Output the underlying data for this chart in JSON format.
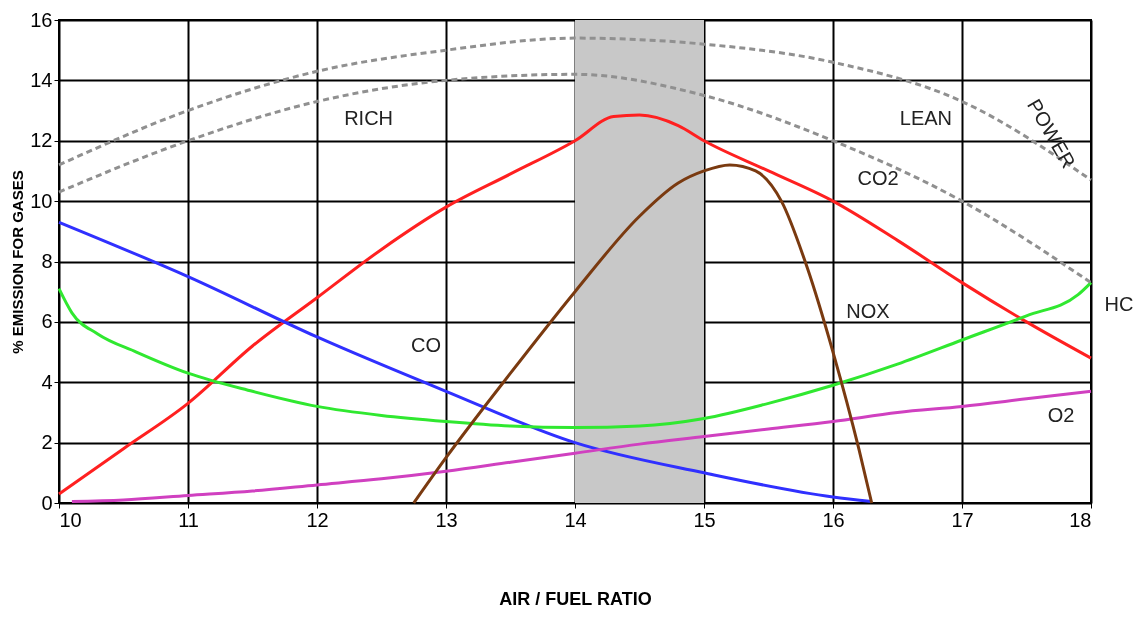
{
  "chart_data": {
    "type": "line",
    "xlabel": "AIR / FUEL RATIO",
    "ylabel": "% EMISSION FOR GASES",
    "xlim": [
      10,
      18
    ],
    "xticks": [
      10,
      11,
      12,
      13,
      14,
      15,
      16,
      17,
      18
    ],
    "ylim": [
      0,
      16
    ],
    "yticks": [
      0,
      2,
      4,
      6,
      8,
      10,
      12,
      14,
      16
    ],
    "grid": true,
    "marker": "none",
    "series": [
      {
        "name": "CO2",
        "color": "#ff2020",
        "x": [
          10,
          10.5,
          11,
          11.5,
          12,
          12.5,
          13,
          13.5,
          14,
          14.3,
          14.5,
          14.8,
          15,
          15.5,
          16,
          16.5,
          17,
          17.5,
          18
        ],
        "values": [
          0.3,
          1.8,
          3.3,
          5.2,
          6.8,
          8.4,
          9.8,
          10.9,
          12.0,
          12.8,
          12.85,
          12.5,
          12.0,
          11.0,
          10.0,
          8.7,
          7.3,
          6.0,
          4.8
        ]
      },
      {
        "name": "CO",
        "color": "#3030ff",
        "x": [
          10,
          11,
          12,
          13,
          14,
          15,
          16,
          16.3
        ],
        "values": [
          9.3,
          7.5,
          5.5,
          3.7,
          2.0,
          1.0,
          0.2,
          0.05
        ]
      },
      {
        "name": "HC",
        "color": "#30e830",
        "x": [
          10,
          10.1,
          10.3,
          10.6,
          11,
          11.5,
          12,
          12.5,
          13,
          13.5,
          14,
          14.5,
          15,
          15.5,
          16,
          16.5,
          17,
          17.5,
          17.9,
          18
        ],
        "values": [
          7.1,
          6.3,
          5.6,
          5.0,
          4.3,
          3.7,
          3.2,
          2.9,
          2.7,
          2.55,
          2.5,
          2.55,
          2.8,
          3.3,
          3.9,
          4.6,
          5.4,
          6.2,
          6.9,
          7.3
        ]
      },
      {
        "name": "O2",
        "color": "#d040c0",
        "x": [
          10.1,
          10.5,
          11,
          11.5,
          12,
          12.5,
          13,
          13.5,
          14,
          14.5,
          15,
          15.5,
          16,
          16.5,
          17,
          17.5,
          18
        ],
        "values": [
          0.05,
          0.1,
          0.25,
          0.4,
          0.6,
          0.8,
          1.05,
          1.35,
          1.65,
          1.95,
          2.2,
          2.45,
          2.7,
          3.0,
          3.2,
          3.45,
          3.7
        ]
      },
      {
        "name": "NOX",
        "color": "#7a3a10",
        "x": [
          12.75,
          13,
          13.5,
          14,
          14.5,
          14.8,
          15,
          15.2,
          15.4,
          15.6,
          15.8,
          16,
          16.2,
          16.3
        ],
        "values": [
          0,
          1.5,
          4.3,
          7.0,
          9.5,
          10.6,
          11.0,
          11.2,
          11.0,
          10.0,
          7.8,
          5.0,
          1.8,
          0
        ]
      },
      {
        "name": "POWER",
        "color": "#909090",
        "line_style": "dashed",
        "x": [
          10,
          11,
          12,
          13,
          14,
          15,
          16,
          17,
          18
        ],
        "values": [
          11.2,
          13.0,
          14.3,
          15.0,
          15.4,
          15.2,
          14.6,
          13.3,
          10.7
        ]
      },
      {
        "color": "#909090",
        "line_style": "dashed",
        "x": [
          10,
          11,
          12,
          13,
          14,
          15,
          16,
          17,
          18
        ],
        "values": [
          10.3,
          12.0,
          13.3,
          14.0,
          14.2,
          13.5,
          12.0,
          10.0,
          7.3
        ]
      }
    ],
    "bands": [
      {
        "axis": "x",
        "from": 14,
        "to": 15,
        "color": "#c8c8c8"
      }
    ],
    "annotations": [
      "RICH",
      "LEAN"
    ]
  }
}
